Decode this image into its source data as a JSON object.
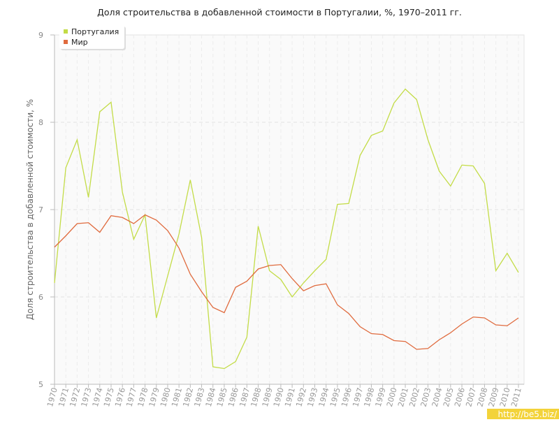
{
  "chart_data": {
    "type": "line",
    "title": "Доля строительства в добавленной стоимости в Португалии, %, 1970–2011 гг.",
    "ylabel": "Доля строительства в добавленной стоимости, %",
    "categories": [
      "1970",
      "1971",
      "1972",
      "1973",
      "1974",
      "1975",
      "1976",
      "1977",
      "1978",
      "1979",
      "1980",
      "1981",
      "1982",
      "1983",
      "1984",
      "1985",
      "1986",
      "1987",
      "1988",
      "1989",
      "1990",
      "1991",
      "1992",
      "1993",
      "1994",
      "1995",
      "1996",
      "1997",
      "1998",
      "1999",
      "2000",
      "2001",
      "2002",
      "2003",
      "2004",
      "2005",
      "2006",
      "2007",
      "2008",
      "2009",
      "2010",
      "2011"
    ],
    "series": [
      {
        "name": "Португалия",
        "color": "#c3dc47",
        "values": [
          6.16,
          7.48,
          7.8,
          7.14,
          8.12,
          8.23,
          7.2,
          6.66,
          6.94,
          5.76,
          6.24,
          6.72,
          7.34,
          6.68,
          5.2,
          5.18,
          5.26,
          5.54,
          6.81,
          6.3,
          6.2,
          6.0,
          6.16,
          6.3,
          6.43,
          7.06,
          7.07,
          7.62,
          7.85,
          7.9,
          8.22,
          8.38,
          8.26,
          7.8,
          7.44,
          7.27,
          7.51,
          7.5,
          7.3,
          6.3,
          6.5,
          6.28
        ]
      },
      {
        "name": "Мир",
        "color": "#e06b3e",
        "values": [
          6.57,
          6.7,
          6.84,
          6.85,
          6.74,
          6.93,
          6.91,
          6.84,
          6.94,
          6.88,
          6.76,
          6.56,
          6.26,
          6.06,
          5.88,
          5.82,
          6.11,
          6.18,
          6.32,
          6.36,
          6.37,
          6.21,
          6.07,
          6.13,
          6.15,
          5.91,
          5.81,
          5.66,
          5.58,
          5.57,
          5.5,
          5.49,
          5.4,
          5.41,
          5.51,
          5.59,
          5.69,
          5.77,
          5.76,
          5.68,
          5.67,
          5.76
        ]
      }
    ],
    "ylim": [
      5,
      9
    ],
    "yticks": [
      5,
      6,
      7,
      8,
      9
    ],
    "grid": true,
    "legend": "top-left",
    "watermark": "http://be5.biz/"
  }
}
